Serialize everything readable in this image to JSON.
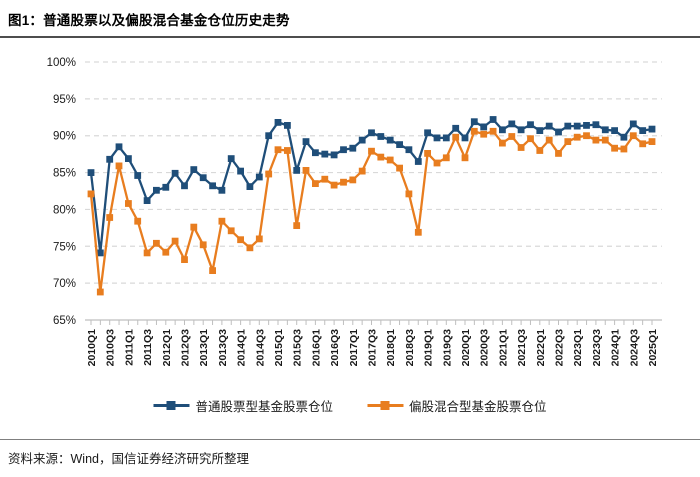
{
  "header": {
    "title": "图1：普通股票以及偏股混合基金仓位历史走势"
  },
  "source": {
    "text": "资料来源：Wind，国信证券经济研究所整理"
  },
  "colors": {
    "series_blue": "#1f4e79",
    "series_orange": "#e87d1f",
    "gridline": "#d9d9d9",
    "axis": "#bfbfbf",
    "text": "#1a1a1a"
  },
  "chart_data": {
    "type": "line",
    "title": "普通股票以及偏股混合基金仓位历史走势",
    "marker": "square",
    "grid": "horizontal-dashed",
    "legend_position": "bottom-center",
    "ylim": [
      65,
      100
    ],
    "ytick_step": 5,
    "yticks": [
      "65%",
      "70%",
      "75%",
      "80%",
      "85%",
      "90%",
      "95%",
      "100%"
    ],
    "x_ticks_shown_every": 2,
    "x": [
      "2010Q1",
      "2010Q2",
      "2010Q3",
      "2010Q4",
      "2011Q1",
      "2011Q2",
      "2011Q3",
      "2011Q4",
      "2012Q1",
      "2012Q2",
      "2012Q3",
      "2012Q4",
      "2013Q1",
      "2013Q2",
      "2013Q3",
      "2013Q4",
      "2014Q1",
      "2014Q2",
      "2014Q3",
      "2014Q4",
      "2015Q1",
      "2015Q2",
      "2015Q3",
      "2015Q4",
      "2016Q1",
      "2016Q2",
      "2016Q3",
      "2016Q4",
      "2017Q1",
      "2017Q2",
      "2017Q3",
      "2017Q4",
      "2018Q1",
      "2018Q2",
      "2018Q3",
      "2018Q4",
      "2019Q1",
      "2019Q2",
      "2019Q3",
      "2019Q4",
      "2020Q1",
      "2020Q2",
      "2020Q3",
      "2020Q4",
      "2021Q1",
      "2021Q2",
      "2021Q3",
      "2021Q4",
      "2022Q1",
      "2022Q2",
      "2022Q3",
      "2022Q4",
      "2023Q1",
      "2023Q2",
      "2023Q3",
      "2023Q4",
      "2024Q1",
      "2024Q2",
      "2024Q3",
      "2024Q4",
      "2025Q1"
    ],
    "series": [
      {
        "name": "普通股票型基金股票仓位",
        "color": "#1f4e79",
        "values": [
          85.0,
          74.1,
          86.8,
          88.5,
          86.9,
          84.6,
          81.2,
          82.6,
          83.0,
          84.9,
          83.2,
          85.4,
          84.3,
          83.2,
          82.6,
          86.9,
          85.2,
          83.1,
          84.4,
          90.0,
          91.8,
          91.4,
          85.3,
          89.2,
          87.7,
          87.5,
          87.4,
          88.1,
          88.3,
          89.4,
          90.4,
          89.9,
          89.4,
          88.8,
          88.1,
          86.5,
          90.4,
          89.7,
          89.7,
          91.0,
          89.7,
          91.9,
          91.2,
          92.2,
          90.8,
          91.6,
          90.8,
          91.5,
          90.7,
          91.3,
          90.5,
          91.3,
          91.3,
          91.4,
          91.5,
          90.8,
          90.7,
          89.8,
          91.6,
          90.7,
          90.9
        ]
      },
      {
        "name": "偏股混合型基金股票仓位",
        "color": "#e87d1f",
        "values": [
          82.1,
          68.8,
          78.9,
          85.9,
          80.8,
          78.4,
          74.1,
          75.4,
          74.2,
          75.7,
          73.2,
          77.6,
          75.2,
          71.7,
          78.4,
          77.1,
          75.9,
          74.8,
          76.0,
          84.8,
          88.1,
          88.0,
          77.8,
          85.3,
          83.5,
          84.1,
          83.3,
          83.7,
          84.0,
          85.2,
          87.9,
          87.1,
          86.7,
          85.6,
          82.1,
          76.9,
          87.6,
          86.3,
          87.0,
          89.8,
          87.0,
          90.6,
          90.2,
          90.6,
          89.0,
          89.9,
          88.4,
          89.6,
          88.0,
          89.4,
          87.6,
          89.2,
          89.8,
          90.0,
          89.4,
          89.4,
          88.3,
          88.2,
          90.0,
          88.9,
          89.2
        ]
      }
    ]
  }
}
